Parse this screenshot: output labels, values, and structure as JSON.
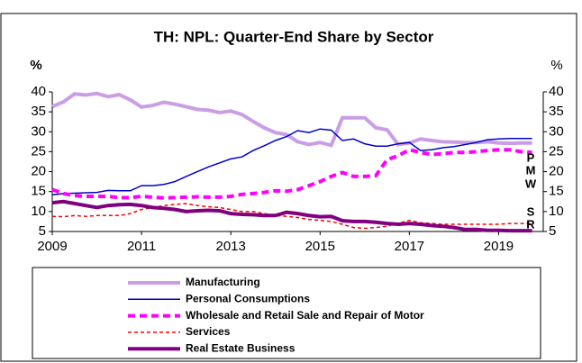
{
  "chart_data": {
    "type": "line",
    "title": "TH: NPL: Quarter-End Share by Sector",
    "y_label": "%",
    "y2_label": "%",
    "x": [
      2009,
      2009.25,
      2009.5,
      2009.75,
      2010,
      2010.25,
      2010.5,
      2010.75,
      2011,
      2011.25,
      2011.5,
      2011.75,
      2012,
      2012.25,
      2012.5,
      2012.75,
      2013,
      2013.25,
      2013.5,
      2013.75,
      2014,
      2014.25,
      2014.5,
      2014.75,
      2015,
      2015.25,
      2015.5,
      2015.75,
      2016,
      2016.25,
      2016.5,
      2016.75,
      2017,
      2017.25,
      2017.5,
      2017.75,
      2018,
      2018.25,
      2018.5,
      2018.75,
      2019,
      2019.25,
      2019.5,
      2019.75
    ],
    "xlim": [
      2009,
      2020
    ],
    "xticks": [
      2009,
      2011,
      2013,
      2015,
      2017,
      2019
    ],
    "ylim": [
      5,
      40
    ],
    "yticks": [
      5,
      10,
      15,
      20,
      25,
      30,
      35,
      40
    ],
    "y2lim": [
      5,
      40
    ],
    "y2ticks": [
      5,
      10,
      15,
      20,
      25,
      30,
      35,
      40
    ],
    "series": [
      {
        "name": "Manufacturing",
        "color": "#c99ee6",
        "width": 4,
        "dashed": false,
        "values": [
          36.3,
          37.5,
          39.5,
          39.2,
          39.6,
          38.8,
          39.3,
          38.0,
          36.2,
          36.6,
          37.4,
          36.9,
          36.3,
          35.6,
          35.4,
          34.8,
          35.2,
          34.3,
          32.6,
          31.0,
          29.8,
          29.3,
          27.5,
          26.8,
          27.3,
          26.6,
          33.5,
          33.5,
          33.5,
          31.0,
          30.5,
          26.8,
          27.2,
          28.2,
          27.8,
          27.5,
          27.4,
          27.3,
          27.3,
          27.5,
          27.2,
          27.1,
          27.2,
          27.2
        ]
      },
      {
        "name": "Personal Consumptions",
        "color": "#0000cc",
        "width": 1.5,
        "dashed": false,
        "values": [
          14.2,
          14.5,
          14.6,
          14.7,
          14.8,
          15.3,
          15.2,
          15.2,
          16.5,
          16.5,
          16.8,
          17.5,
          18.8,
          20.0,
          21.2,
          22.2,
          23.2,
          23.7,
          25.3,
          26.5,
          27.8,
          28.8,
          30.3,
          29.8,
          30.7,
          30.4,
          27.8,
          28.2,
          27.0,
          26.4,
          26.4,
          27.0,
          27.3,
          25.3,
          25.5,
          26.0,
          26.3,
          26.8,
          27.3,
          28.0,
          28.2,
          28.3,
          28.3,
          28.3
        ]
      },
      {
        "name": "Wholesale and Retail Sale and Repair of Motor",
        "color": "#ff00ff",
        "width": 4,
        "dashed": true,
        "values": [
          15.5,
          14.5,
          14.0,
          13.8,
          13.8,
          13.8,
          13.5,
          13.5,
          13.8,
          13.6,
          13.4,
          13.5,
          13.6,
          13.7,
          13.6,
          13.6,
          13.8,
          14.3,
          14.5,
          14.8,
          15.2,
          15.1,
          15.5,
          16.5,
          17.5,
          18.8,
          19.8,
          18.8,
          18.8,
          19.0,
          23.0,
          24.0,
          25.5,
          24.8,
          24.3,
          24.5,
          24.8,
          24.8,
          25.0,
          25.3,
          25.5,
          25.5,
          25.0,
          24.8
        ]
      },
      {
        "name": "Services",
        "color": "#ff0000",
        "width": 1.5,
        "dashed": true,
        "values": [
          8.8,
          8.7,
          9.0,
          8.8,
          9.0,
          9.0,
          9.0,
          9.5,
          10.5,
          11.0,
          11.5,
          11.8,
          12.0,
          11.5,
          11.2,
          11.0,
          10.5,
          10.0,
          10.0,
          9.5,
          9.0,
          8.8,
          8.5,
          8.0,
          7.8,
          7.5,
          6.8,
          6.0,
          5.8,
          6.0,
          6.3,
          7.0,
          7.8,
          7.2,
          7.0,
          6.8,
          6.8,
          6.8,
          6.8,
          6.8,
          6.8,
          7.0,
          7.0,
          7.0
        ]
      },
      {
        "name": "Real Estate Business",
        "color": "#800080",
        "width": 4,
        "dashed": false,
        "values": [
          12.2,
          12.5,
          12.0,
          11.5,
          11.0,
          11.5,
          11.7,
          11.8,
          11.5,
          11.0,
          10.8,
          10.5,
          10.0,
          10.2,
          10.3,
          10.2,
          9.5,
          9.3,
          9.2,
          9.0,
          9.0,
          9.8,
          9.5,
          9.0,
          8.7,
          8.8,
          7.7,
          7.5,
          7.5,
          7.3,
          7.0,
          6.8,
          7.0,
          6.8,
          6.5,
          6.3,
          6.0,
          5.5,
          5.5,
          5.3,
          5.3,
          5.2,
          5.2,
          5.2
        ]
      }
    ],
    "annotations": [
      {
        "text": "P",
        "color": "#3333ff"
      },
      {
        "text": "M",
        "color": "#c99ee6"
      },
      {
        "text": "W",
        "color": "#ff00ff"
      },
      {
        "text": "S",
        "color": "#ff0000"
      },
      {
        "text": "R",
        "color": "#800080"
      }
    ]
  }
}
